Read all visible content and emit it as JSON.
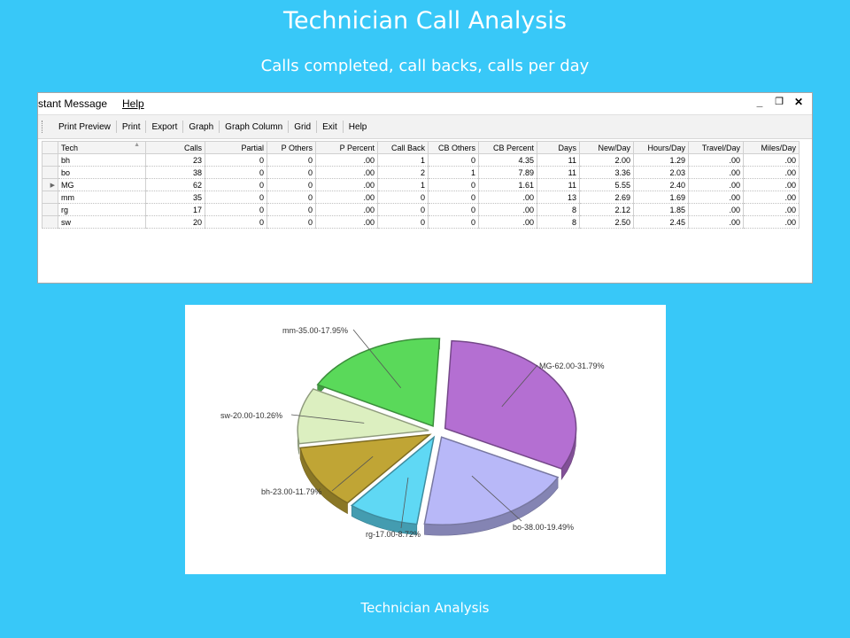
{
  "slide": {
    "title": "Technician Call Analysis",
    "subtitle": "Calls completed, call backs, calls per day",
    "footer": "Technician Analysis"
  },
  "window": {
    "menu": [
      "stant Message",
      "Help"
    ],
    "controls": {
      "minimize": "_",
      "restore": "🗗",
      "close": "✕"
    },
    "toolbar": [
      "Print Preview",
      "Print",
      "Export",
      "Graph",
      "Graph Column",
      "Grid",
      "Exit",
      "Help"
    ]
  },
  "grid": {
    "columns": [
      "Tech",
      "Calls",
      "Partial",
      "P Others",
      "P Percent",
      "Call Back",
      "CB Others",
      "CB Percent",
      "Days",
      "New/Day",
      "Hours/Day",
      "Travel/Day",
      "Miles/Day"
    ],
    "rows": [
      [
        "bh",
        "23",
        "0",
        "0",
        ".00",
        "1",
        "0",
        "4.35",
        "11",
        "2.00",
        "1.29",
        ".00",
        ".00"
      ],
      [
        "bo",
        "38",
        "0",
        "0",
        ".00",
        "2",
        "1",
        "7.89",
        "11",
        "3.36",
        "2.03",
        ".00",
        ".00"
      ],
      [
        "MG",
        "62",
        "0",
        "0",
        ".00",
        "1",
        "0",
        "1.61",
        "11",
        "5.55",
        "2.40",
        ".00",
        ".00"
      ],
      [
        "mm",
        "35",
        "0",
        "0",
        ".00",
        "0",
        "0",
        ".00",
        "13",
        "2.69",
        "1.69",
        ".00",
        ".00"
      ],
      [
        "rg",
        "17",
        "0",
        "0",
        ".00",
        "0",
        "0",
        ".00",
        "8",
        "2.12",
        "1.85",
        ".00",
        ".00"
      ],
      [
        "sw",
        "20",
        "0",
        "0",
        ".00",
        "0",
        "0",
        ".00",
        "8",
        "2.50",
        "2.45",
        ".00",
        ".00"
      ]
    ],
    "current_row": 2
  },
  "chart_data": {
    "type": "pie",
    "slices": [
      {
        "label": "MG-62.00-31.79%",
        "value": 62,
        "color": "#b46fd2"
      },
      {
        "label": "bo-38.00-19.49%",
        "value": 38,
        "color": "#b8b8f8"
      },
      {
        "label": "rg-17.00-8.72%",
        "value": 17,
        "color": "#5fd8f4"
      },
      {
        "label": "bh-23.00-11.79%",
        "value": 23,
        "color": "#c0a535"
      },
      {
        "label": "sw-20.00-10.26%",
        "value": 20,
        "color": "#dcefc0"
      },
      {
        "label": "mm-35.00-17.95%",
        "value": 35,
        "color": "#5ad95a"
      }
    ]
  }
}
